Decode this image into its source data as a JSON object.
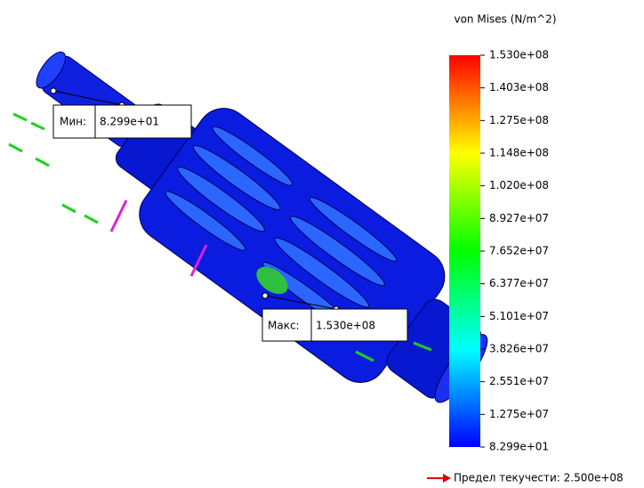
{
  "legend": {
    "title": "von Mises (N/m^2)",
    "labels": [
      "1.530e+08",
      "1.403e+08",
      "1.275e+08",
      "1.148e+08",
      "1.020e+08",
      "8.927e+07",
      "7.652e+07",
      "6.377e+07",
      "5.101e+07",
      "3.826e+07",
      "2.551e+07",
      "1.275e+07",
      "8.299e+01"
    ]
  },
  "min_probe": {
    "label": "Мин:",
    "value": "8.299e+01"
  },
  "max_probe": {
    "label": "Макс:",
    "value": "1.530e+08"
  },
  "yield_note": "Предел текучести: 2.500e+08"
}
